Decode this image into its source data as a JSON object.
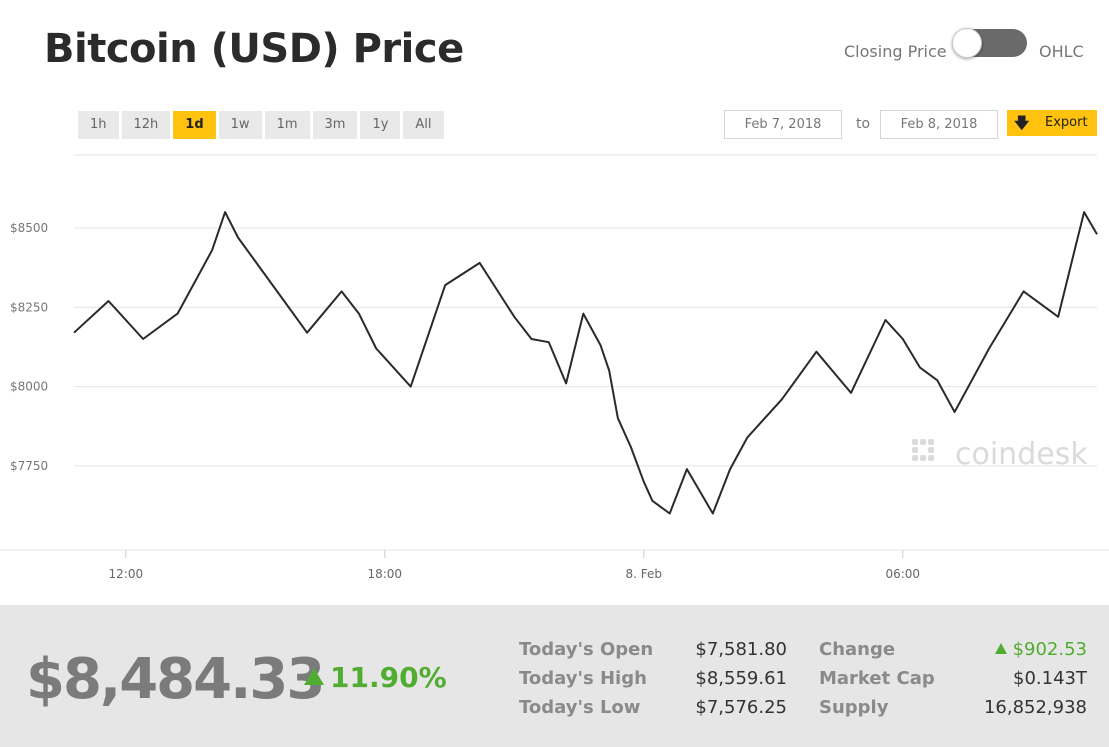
{
  "header": {
    "title": "Bitcoin (USD) Price",
    "toggle_left_label": "Closing Price",
    "toggle_right_label": "OHLC"
  },
  "ranges": [
    "1h",
    "12h",
    "1d",
    "1w",
    "1m",
    "3m",
    "1y",
    "All"
  ],
  "active_range": "1d",
  "dates": {
    "from": "Feb 7, 2018",
    "separator": "to",
    "to": "Feb 8, 2018"
  },
  "export": {
    "label": "Export",
    "icon": "download-arrow-icon"
  },
  "colors": {
    "accent": "#ffc20e",
    "positive": "#51ad32",
    "line": "#2a2a2a",
    "grid": "#e4e4e4"
  },
  "chart_data": {
    "type": "line",
    "watermark": "coindesk",
    "ylim": [
      7550,
      8600
    ],
    "y_ticks": [
      7750,
      8000,
      8250,
      8500
    ],
    "y_tick_labels": [
      "$7750",
      "$8000",
      "$8250",
      "$8500"
    ],
    "x_tick_labels": [
      "12:00",
      "18:00",
      "8. Feb",
      "06:00"
    ],
    "x_ticks_hours": [
      2,
      8,
      14,
      20
    ],
    "x_range_hours": [
      0.8,
      24.5
    ],
    "series": [
      {
        "x_hours": [
          0.8,
          1.6,
          2.4,
          3.2,
          4.0,
          4.3,
          4.6,
          5.4,
          6.2,
          7.0,
          7.4,
          7.8,
          8.6,
          9.4,
          10.2,
          11.0,
          11.4,
          11.8,
          12.2,
          12.6,
          13.0,
          13.2,
          13.4,
          13.7,
          14.0,
          14.2,
          14.6,
          15.0,
          15.6,
          16.0,
          16.4,
          17.2,
          18.0,
          18.8,
          19.6,
          20.0,
          20.4,
          20.8,
          21.2,
          22.0,
          22.8,
          23.6,
          23.8,
          24.0,
          24.2,
          24.5
        ],
        "y": [
          8170,
          8270,
          8150,
          8230,
          8430,
          8550,
          8470,
          8320,
          8170,
          8300,
          8230,
          8120,
          8000,
          8320,
          8390,
          8220,
          8150,
          8140,
          8010,
          8230,
          8130,
          8050,
          7900,
          7810,
          7700,
          7640,
          7600,
          7740,
          7600,
          7740,
          7840,
          7960,
          8110,
          7980,
          8210,
          8150,
          8060,
          8020,
          7920,
          8120,
          8300,
          8220,
          8330,
          8440,
          8550,
          8480
        ]
      }
    ]
  },
  "stats": {
    "price": "$8,484.33",
    "change_pct": "11.90%",
    "open_label": "Today's Open",
    "open_value": "$7,581.80",
    "high_label": "Today's High",
    "high_value": "$8,559.61",
    "low_label": "Today's Low",
    "low_value": "$7,576.25",
    "change_label": "Change",
    "change_value": "$902.53",
    "mcap_label": "Market Cap",
    "mcap_value": "$0.143T",
    "supply_label": "Supply",
    "supply_value": "16,852,938"
  }
}
